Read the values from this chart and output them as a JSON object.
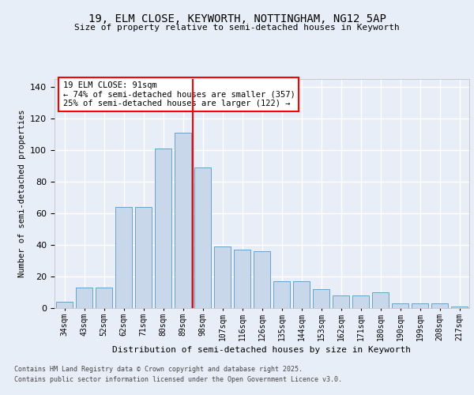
{
  "title1": "19, ELM CLOSE, KEYWORTH, NOTTINGHAM, NG12 5AP",
  "title2": "Size of property relative to semi-detached houses in Keyworth",
  "xlabel": "Distribution of semi-detached houses by size in Keyworth",
  "ylabel": "Number of semi-detached properties",
  "categories": [
    "34sqm",
    "43sqm",
    "52sqm",
    "62sqm",
    "71sqm",
    "80sqm",
    "89sqm",
    "98sqm",
    "107sqm",
    "116sqm",
    "126sqm",
    "135sqm",
    "144sqm",
    "153sqm",
    "162sqm",
    "171sqm",
    "180sqm",
    "190sqm",
    "199sqm",
    "208sqm",
    "217sqm"
  ],
  "bar_values": [
    4,
    13,
    13,
    64,
    64,
    101,
    111,
    89,
    39,
    37,
    36,
    17,
    17,
    12,
    8,
    8,
    10,
    3,
    3,
    3,
    1
  ],
  "bar_color": "#c8d8ea",
  "bar_edge_color": "#6aa0c8",
  "vline_color": "red",
  "annotation_title": "19 ELM CLOSE: 91sqm",
  "annotation_line1": "← 74% of semi-detached houses are smaller (357)",
  "annotation_line2": "25% of semi-detached houses are larger (122) →",
  "footer1": "Contains HM Land Registry data © Crown copyright and database right 2025.",
  "footer2": "Contains public sector information licensed under the Open Government Licence v3.0.",
  "ylim": [
    0,
    145
  ],
  "yticks": [
    0,
    20,
    40,
    60,
    80,
    100,
    120,
    140
  ],
  "bg_color": "#e8eef8",
  "plot_bg_color": "#e8eef8"
}
